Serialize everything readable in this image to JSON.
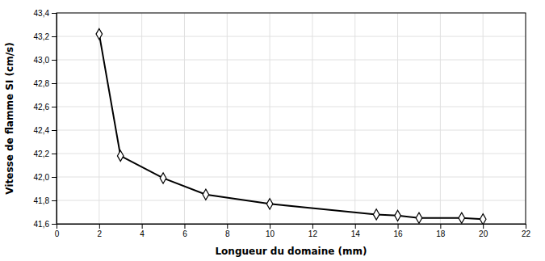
{
  "chart_data": {
    "type": "line",
    "xlabel": "Longueur du domaine (mm)",
    "ylabel": "Vitesse de flamme SI (cm/s)",
    "x": [
      2,
      3,
      5,
      7,
      10,
      15,
      16,
      17,
      19,
      20
    ],
    "values": [
      43.22,
      42.18,
      41.99,
      41.85,
      41.77,
      41.68,
      41.67,
      41.65,
      41.65,
      41.64
    ],
    "color": "#000000",
    "marker": "diamond",
    "xlim": [
      0,
      22
    ],
    "ylim": [
      41.6,
      43.4
    ],
    "xticks": [
      0,
      2,
      4,
      6,
      8,
      10,
      12,
      14,
      16,
      18,
      20,
      22
    ],
    "yticks": [
      {
        "value": 41.6,
        "label": "41,6"
      },
      {
        "value": 41.8,
        "label": "41,8"
      },
      {
        "value": 42.0,
        "label": "42,0"
      },
      {
        "value": 42.2,
        "label": "42,2"
      },
      {
        "value": 42.4,
        "label": "42,4"
      },
      {
        "value": 42.6,
        "label": "42,6"
      },
      {
        "value": 42.8,
        "label": "42,8"
      },
      {
        "value": 43.0,
        "label": "43,0"
      },
      {
        "value": 43.2,
        "label": "43,2"
      },
      {
        "value": 43.4,
        "label": "43,4"
      }
    ],
    "grid": true
  }
}
